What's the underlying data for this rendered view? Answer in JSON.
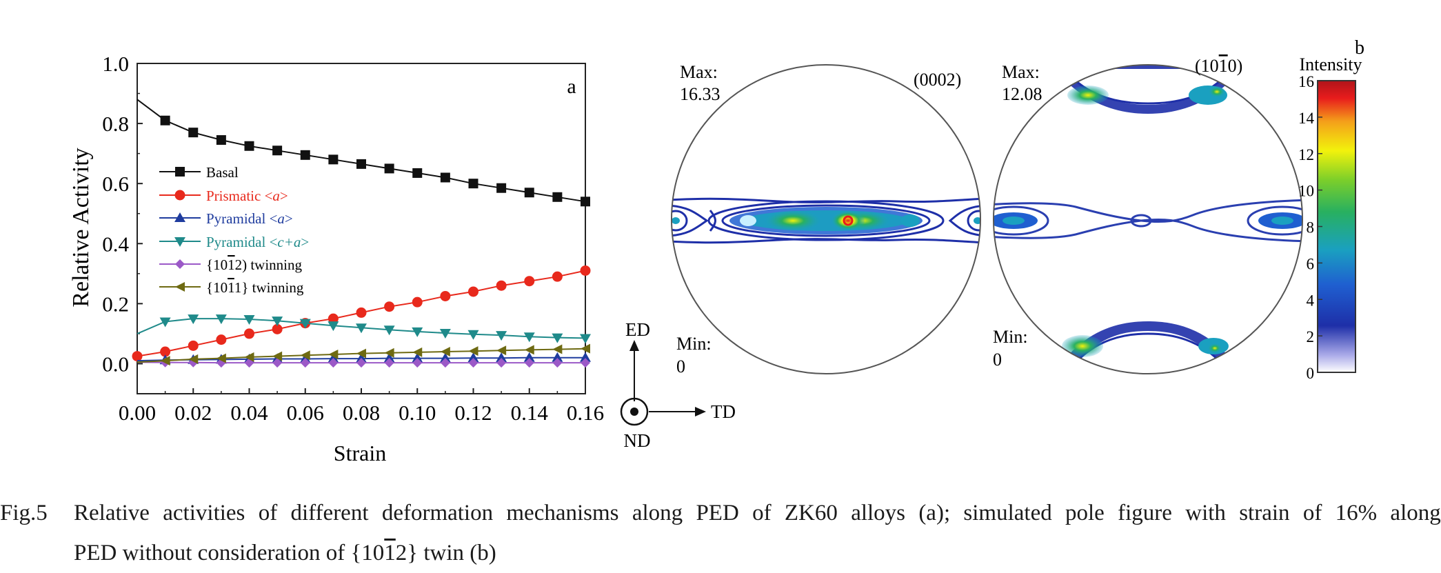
{
  "chart_data": [
    {
      "type": "line",
      "panel_label": "a",
      "xlabel": "Strain",
      "ylabel": "Relative Activity",
      "xlim": [
        0.0,
        0.16
      ],
      "ylim": [
        -0.1,
        1.0
      ],
      "xticks": [
        "0.00",
        "0.02",
        "0.04",
        "0.06",
        "0.08",
        "0.10",
        "0.12",
        "0.14",
        "0.16"
      ],
      "yticks": [
        "0.0",
        "0.2",
        "0.4",
        "0.6",
        "0.8",
        "1.0"
      ],
      "grid": false,
      "legend_position": "center-left",
      "x": [
        0.0,
        0.01,
        0.02,
        0.03,
        0.04,
        0.05,
        0.06,
        0.07,
        0.08,
        0.09,
        0.1,
        0.11,
        0.12,
        0.13,
        0.14,
        0.15,
        0.16
      ],
      "series": [
        {
          "name": "Basal",
          "color": "#111111",
          "marker": "square",
          "values": [
            0.88,
            0.81,
            0.77,
            0.745,
            0.725,
            0.71,
            0.695,
            0.68,
            0.665,
            0.65,
            0.635,
            0.62,
            0.6,
            0.585,
            0.57,
            0.555,
            0.54
          ]
        },
        {
          "name": "Prismatic <a>",
          "color": "#e8291c",
          "marker": "circle",
          "values": [
            0.025,
            0.04,
            0.06,
            0.08,
            0.1,
            0.115,
            0.135,
            0.15,
            0.17,
            0.19,
            0.205,
            0.225,
            0.24,
            0.26,
            0.275,
            0.29,
            0.31
          ]
        },
        {
          "name": "Pyramidal <a>",
          "color": "#1f3c9e",
          "marker": "triangle-up",
          "values": [
            0.01,
            0.012,
            0.013,
            0.014,
            0.015,
            0.016,
            0.016,
            0.017,
            0.017,
            0.018,
            0.018,
            0.018,
            0.019,
            0.019,
            0.02,
            0.02,
            0.02
          ]
        },
        {
          "name": "Pyramidal <c+a>",
          "color": "#1f8a8a",
          "marker": "triangle-down",
          "values": [
            0.1,
            0.14,
            0.15,
            0.15,
            0.148,
            0.143,
            0.135,
            0.127,
            0.12,
            0.113,
            0.107,
            0.102,
            0.098,
            0.095,
            0.09,
            0.087,
            0.085
          ]
        },
        {
          "name": "{10-12} twinning",
          "color": "#9b59c7",
          "marker": "diamond",
          "values": [
            0.005,
            0.004,
            0.004,
            0.003,
            0.003,
            0.003,
            0.003,
            0.003,
            0.003,
            0.003,
            0.003,
            0.003,
            0.003,
            0.003,
            0.003,
            0.003,
            0.003
          ]
        },
        {
          "name": "{10-11} twinning",
          "color": "#6e6a12",
          "marker": "triangle-left",
          "values": [
            0.005,
            0.01,
            0.015,
            0.018,
            0.022,
            0.025,
            0.028,
            0.031,
            0.034,
            0.036,
            0.038,
            0.04,
            0.042,
            0.044,
            0.046,
            0.048,
            0.05
          ]
        }
      ]
    },
    {
      "type": "heatmap",
      "panel_label": "b",
      "pole_figures": [
        {
          "plane_prefix": "(000",
          "plane_bar": "",
          "plane_suffix": "2)",
          "max_label": "Max:",
          "max_value": "16.33",
          "min_label": "Min:",
          "min_value": "0"
        },
        {
          "plane_prefix": "(10",
          "plane_bar": "1",
          "plane_suffix": "0)",
          "max_label": "Max:",
          "max_value": "12.08",
          "min_label": "Min:",
          "min_value": "0"
        }
      ],
      "colorbar": {
        "title": "Intensity",
        "min": 0,
        "max": 16,
        "ticks": [
          "0",
          "2",
          "4",
          "6",
          "8",
          "10",
          "12",
          "14",
          "16"
        ],
        "colors": [
          "#ffffff",
          "#a9a9e8",
          "#1e2fa8",
          "#1f5fd0",
          "#1aa0c0",
          "#28b060",
          "#7ccf2a",
          "#f2f20c",
          "#f4a01a",
          "#e81c1c",
          "#b0141a"
        ]
      },
      "axes": {
        "vertical": "ED",
        "horizontal": "TD",
        "normal": "ND"
      }
    }
  ],
  "caption": {
    "label": "Fig.5",
    "line1": [
      "Relative",
      "activities",
      "of",
      "different",
      "deformation",
      "mechanisms",
      "along",
      "PED",
      "of",
      "ZK60",
      "alloys",
      "(a);",
      "simulated",
      "pole",
      "figure",
      "with",
      "strain",
      "of",
      "16%",
      "along"
    ],
    "line2_a": "PED without consideration of {10",
    "line2_bar": "1",
    "line2_b": "2} twin (b)"
  },
  "legend_text": [
    {
      "prefix": "Basal",
      "italic": "",
      "suffix": ""
    },
    {
      "prefix": "Prismatic <",
      "italic": "a",
      "suffix": ">"
    },
    {
      "prefix": "Pyramidal <",
      "italic": "a",
      "suffix": ">"
    },
    {
      "prefix": "Pyramidal <",
      "italic": "c+a",
      "suffix": ">"
    },
    {
      "prefix": "{10",
      "bar": "1",
      "suffix2": "2) twinning"
    },
    {
      "prefix": "{10",
      "bar": "1",
      "suffix2": "1} twinning"
    }
  ]
}
